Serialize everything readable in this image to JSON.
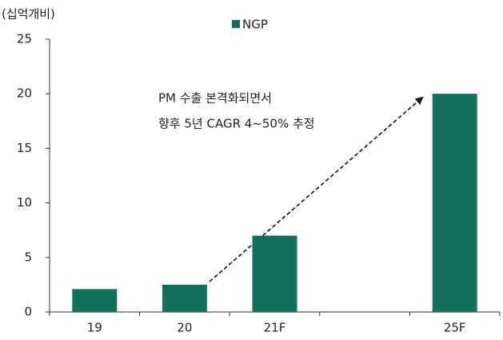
{
  "chart_data": {
    "type": "bar",
    "ylabel": "(십억개비)",
    "annotations": [
      "PM 수출 본격화되면서",
      "향후 5년 CAGR 4~50% 추정"
    ],
    "categories": [
      "19",
      "20",
      "21F",
      null,
      "25F"
    ],
    "series": [
      {
        "name": "NGP",
        "color": "#13705c",
        "values": [
          2.1,
          2.5,
          7,
          null,
          20
        ]
      }
    ],
    "ylim": [
      0,
      25
    ],
    "yticks": [
      0,
      5,
      10,
      15,
      20,
      25
    ],
    "grid": false,
    "legend": "top"
  }
}
